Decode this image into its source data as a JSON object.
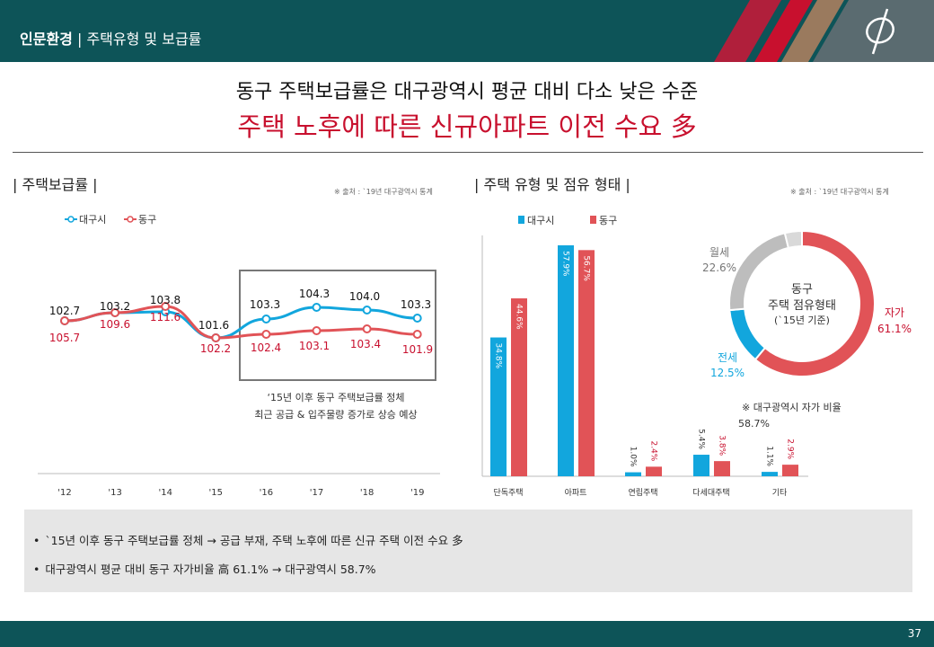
{
  "header": {
    "section": "인문환경",
    "separator": " | ",
    "subtitle": "주택유형 및 보급률"
  },
  "headline": {
    "line1": "동구 주택보급률은 대구광역시 평균 대비 다소 낮은 수준",
    "line2": "주택 노후에 따른 신규아파트 이전 수요 多"
  },
  "left_panel": {
    "title": "| 주택보급률 |",
    "source": "※ 출처 : `19년 대구광역시 통계",
    "annotation_line1": "‘15년 이후 동구 주택보급률 정체",
    "annotation_line2": "최근 공급 & 입주물량 증가로 상승 예상"
  },
  "right_panel": {
    "title": "| 주택 유형 및 점유 형태 |",
    "source": "※ 출처 : `19년 대구광역시 통계",
    "donut_center_line1": "동구",
    "donut_center_line2": "주택 점유형태",
    "donut_center_line3": "(`15년 기준)",
    "daegu_note_label": "※ 대구광역시 자가 비율",
    "daegu_note_value": "58.7%"
  },
  "colors": {
    "daegu": "#12a6dd",
    "donggu": "#e15357",
    "gray": "#bdbdbd",
    "header_bg": "#0d5458",
    "accent_red": "#c8102e"
  },
  "chart_data": [
    {
      "type": "line",
      "categories": [
        "'12",
        "'13",
        "'14",
        "'15",
        "'16",
        "'17",
        "'18",
        "'19"
      ],
      "series": [
        {
          "name": "대구시",
          "color": "#12a6dd",
          "values": [
            102.7,
            103.2,
            103.8,
            101.6,
            103.3,
            104.3,
            104.0,
            103.3
          ]
        },
        {
          "name": "동구",
          "color": "#e15357",
          "values": [
            105.7,
            109.6,
            111.6,
            102.2,
            102.4,
            103.1,
            103.4,
            101.9
          ]
        }
      ],
      "legend": "top-left"
    },
    {
      "type": "bar",
      "categories": [
        "단독주택",
        "아파트",
        "연립주택",
        "다세대주택",
        "기타"
      ],
      "series": [
        {
          "name": "대구시",
          "color": "#12a6dd",
          "values": [
            34.8,
            57.9,
            1.0,
            5.4,
            1.1
          ],
          "labels": [
            "34.8%",
            "57.9%",
            "1.0%",
            "5.4%",
            "1.1%"
          ]
        },
        {
          "name": "동구",
          "color": "#e15357",
          "values": [
            44.6,
            56.7,
            2.4,
            3.8,
            2.9
          ],
          "labels": [
            "44.6%",
            "56.7%",
            "2.4%",
            "3.8%",
            "2.9%"
          ]
        }
      ],
      "legend": "top-left"
    },
    {
      "type": "pie",
      "slices": [
        {
          "name": "자가",
          "value": 61.1,
          "label": "61.1%",
          "color": "#e15357"
        },
        {
          "name": "전세",
          "value": 12.5,
          "label": "12.5%",
          "color": "#12a6dd"
        },
        {
          "name": "월세",
          "value": 22.6,
          "label": "22.6%",
          "color": "#bdbdbd"
        },
        {
          "name": "",
          "value": 3.8,
          "label": "",
          "color": "#d9d9d9"
        }
      ]
    }
  ],
  "summary": {
    "items": [
      "`15년 이후 동구 주택보급률 정체 → 공급 부재, 주택 노후에 따른 신규 주택 이전 수요 多",
      "대구광역시 평균 대비 동구 자가비율 高 61.1% → 대구광역시 58.7%"
    ]
  },
  "footer": {
    "page": "37"
  }
}
